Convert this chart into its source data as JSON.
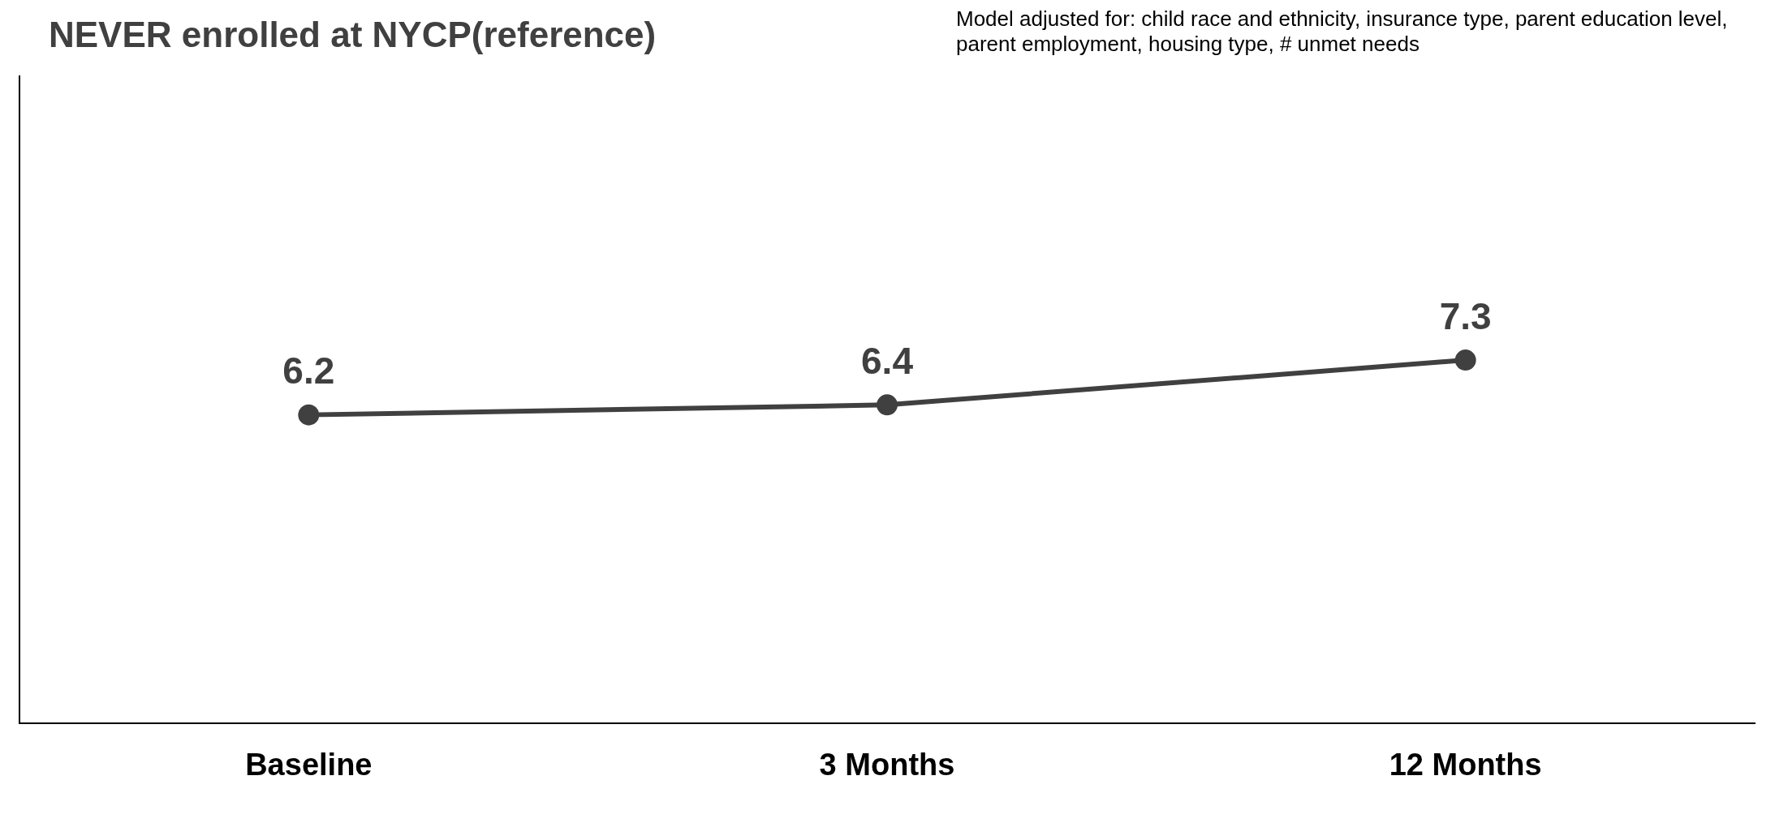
{
  "chart_data": {
    "type": "line",
    "title": "NEVER enrolled at NYCP(reference)",
    "annotations": [
      "Model adjusted for: child race and ethnicity, insurance type, parent education level, parent employment, housing type, # unmet needs"
    ],
    "categories": [
      "Baseline",
      "3 Months",
      "12 Months"
    ],
    "series": [
      {
        "color": "#404040",
        "values": [
          6.2,
          6.4,
          7.3
        ]
      }
    ],
    "ylim": [
      0,
      13
    ],
    "tick_labels": "x",
    "data_labels": true,
    "marker": "circle",
    "line_style": "solid",
    "grid": false,
    "legend": false
  }
}
